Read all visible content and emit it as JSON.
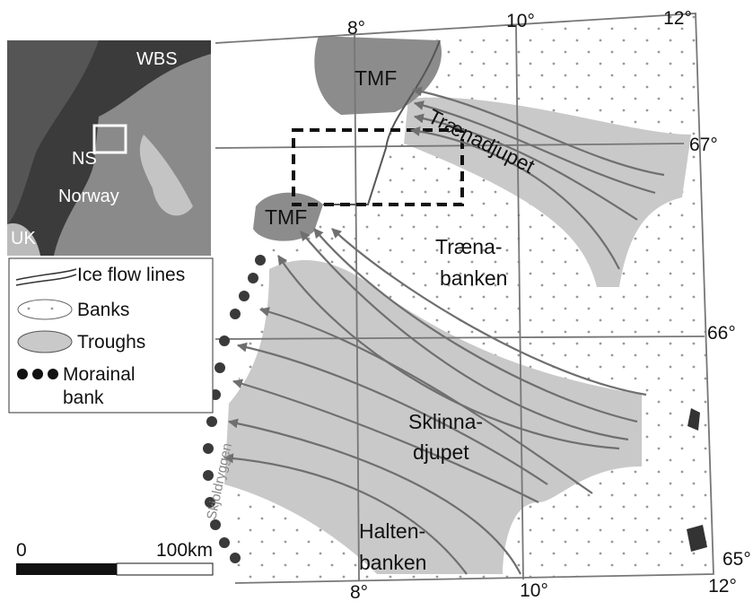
{
  "graticule": {
    "top": [
      "8°",
      "10°",
      "12°"
    ],
    "right": [
      "67°",
      "66°",
      "65°"
    ],
    "bottom": [
      "8°",
      "10°",
      "12°"
    ]
  },
  "map_labels": {
    "tmf_north": "TMF",
    "tmf_south": "TMF",
    "traenadjupet": "Trænadjupet",
    "traenabanken": [
      "Træna-",
      "banken"
    ],
    "sklinnadjupet": [
      "Sklinna-",
      "djupet"
    ],
    "haltenbanken": [
      "Halten-",
      "banken"
    ],
    "skjoldryggen": "Skjoldryggen"
  },
  "inset": {
    "wbs": "WBS",
    "ns": "NS",
    "norway": "Norway",
    "uk": "UK"
  },
  "legend": {
    "ice_flow_lines": "Ice flow lines",
    "banks": "Banks",
    "troughs": "Troughs",
    "morainal_bank": [
      "Morainal",
      "bank"
    ]
  },
  "scale_bar": {
    "start": "0",
    "end": "100km"
  }
}
